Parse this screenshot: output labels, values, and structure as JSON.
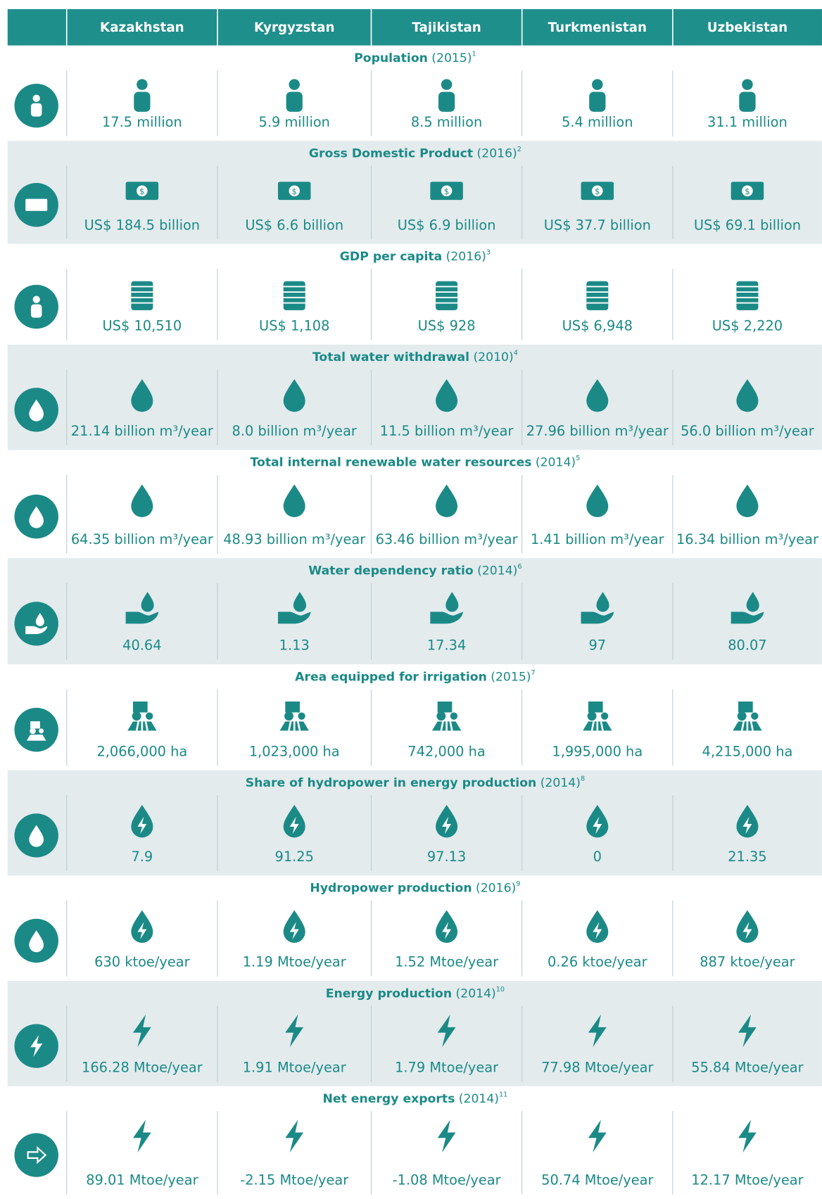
{
  "header": {
    "countries": [
      "Kazakhstan",
      "Kyrgyzstan",
      "Tajikistan",
      "Turkmenistan",
      "Uzbekistan"
    ]
  },
  "rows": [
    {
      "title": "Population",
      "year": "(2015)",
      "note": "1",
      "values": [
        "17.5 million",
        "5.9 million",
        "8.5 million",
        "5.4 million",
        "31.1 million"
      ]
    },
    {
      "title": "Gross Domestic Product",
      "year": "(2016)",
      "note": "2",
      "values": [
        "US$ 184.5 billion",
        "US$ 6.6 billion",
        "US$ 6.9 billion",
        "US$ 37.7 billion",
        "US$ 69.1 billion"
      ]
    },
    {
      "title": "GDP per capita",
      "year": "(2016)",
      "note": "3",
      "values": [
        "US$ 10,510",
        "US$ 1,108",
        "US$ 928",
        "US$ 6,948",
        "US$ 2,220"
      ]
    },
    {
      "title": "Total water withdrawal",
      "year": "(2010)",
      "note": "4",
      "values": [
        "21.14 billion m³/year",
        "8.0 billion m³/year",
        "11.5 billion m³/year",
        "27.96 billion m³/year",
        "56.0 billion m³/year"
      ]
    },
    {
      "title": "Total internal renewable water resources",
      "year": "(2014)",
      "note": "5",
      "values": [
        "64.35 billion m³/year",
        "48.93 billion m³/year",
        "63.46 billion m³/year",
        "1.41 billion m³/year",
        "16.34 billion m³/year"
      ]
    },
    {
      "title": "Water dependency ratio",
      "year": "(2014)",
      "note": "6",
      "values": [
        "40.64",
        "1.13",
        "17.34",
        "97",
        "80.07"
      ]
    },
    {
      "title": "Area equipped for irrigation",
      "year": "(2015)",
      "note": "7",
      "values": [
        "2,066,000 ha",
        "1,023,000 ha",
        "742,000 ha",
        "1,995,000 ha",
        "4,215,000 ha"
      ]
    },
    {
      "title": "Share of hydropower in energy production",
      "year": "(2014)",
      "note": "8",
      "values": [
        "7.9",
        "91.25",
        "97.13",
        "0",
        "21.35"
      ]
    },
    {
      "title": "Hydropower production",
      "year": "(2016)",
      "note": "9",
      "values": [
        "630 ktoe/year",
        "1.19 Mtoe/year",
        "1.52 Mtoe/year",
        "0.26 ktoe/year",
        "887 ktoe/year"
      ]
    },
    {
      "title": "Energy production",
      "year": "(2014)",
      "note": "10",
      "values": [
        "166.28 Mtoe/year",
        "1.91 Mtoe/year",
        "1.79 Mtoe/year",
        "77.98 Mtoe/year",
        "55.84 Mtoe/year"
      ]
    },
    {
      "title": "Net energy exports",
      "year": "(2014)",
      "note": "11",
      "values": [
        "89.01 Mtoe/year",
        "-2.15 Mtoe/year",
        "-1.08 Mtoe/year",
        "50.74 Mtoe/year",
        "12.17 Mtoe/year"
      ]
    }
  ]
}
